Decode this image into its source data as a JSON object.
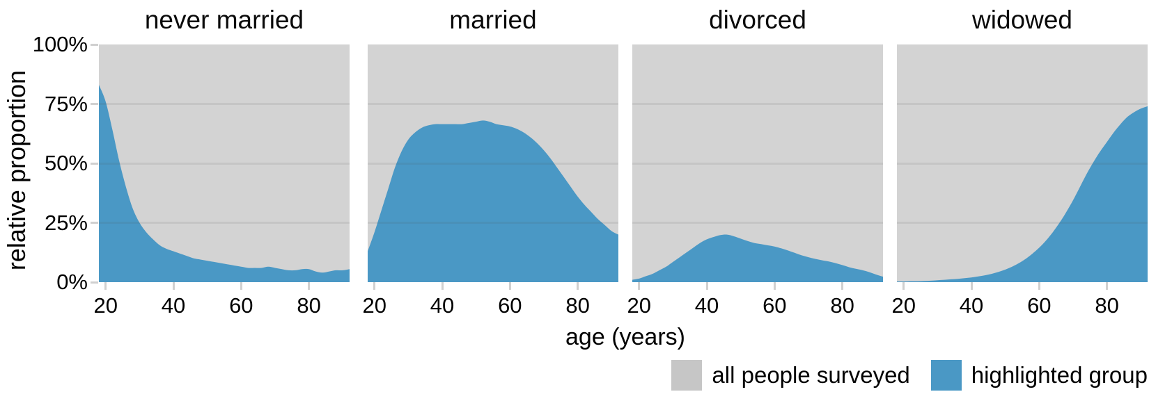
{
  "figure": {
    "y_axis_label": "relative proportion",
    "x_axis_label": "age (years)",
    "y_ticks": [
      {
        "value": 100,
        "label": "100%"
      },
      {
        "value": 75,
        "label": "75%"
      },
      {
        "value": 50,
        "label": "50%"
      },
      {
        "value": 25,
        "label": "25%"
      },
      {
        "value": 0,
        "label": "0%"
      }
    ]
  },
  "legend": {
    "items": [
      {
        "label": "all people surveyed",
        "color": "#c6c6c6"
      },
      {
        "label": "highlighted group",
        "color": "#4a98c5"
      }
    ]
  },
  "colors": {
    "highlight": "#4a98c5",
    "panel_background": "#d3d3d3",
    "gridline": "rgba(80,80,80,0.10)",
    "tick": "#d0d0d0",
    "text": "#000000"
  },
  "chart_data": [
    {
      "type": "area",
      "title": "never married",
      "xlabel": "age (years)",
      "ylabel": "relative proportion",
      "xlim": [
        18,
        92
      ],
      "ylim": [
        0,
        100
      ],
      "x_ticks": [
        20,
        40,
        60,
        80
      ],
      "x_tick_labels": [
        "20",
        "40",
        "60",
        "80"
      ],
      "x": [
        18,
        20,
        22,
        24,
        26,
        28,
        30,
        32,
        34,
        36,
        38,
        40,
        42,
        44,
        46,
        48,
        50,
        52,
        54,
        56,
        58,
        60,
        62,
        64,
        66,
        68,
        70,
        72,
        74,
        76,
        78,
        80,
        82,
        84,
        86,
        88,
        90,
        92
      ],
      "y_percent": [
        83,
        76,
        64,
        51,
        40,
        31,
        25,
        21,
        18,
        15.5,
        14,
        13,
        12,
        11,
        10,
        9.5,
        9,
        8.5,
        8,
        7.5,
        7,
        6.5,
        6,
        6,
        6,
        6.5,
        6,
        5.5,
        5,
        5,
        5.5,
        5.5,
        4.5,
        4,
        4.5,
        5,
        5,
        5.5
      ]
    },
    {
      "type": "area",
      "title": "married",
      "xlabel": "age (years)",
      "ylabel": "relative proportion",
      "xlim": [
        18,
        92
      ],
      "ylim": [
        0,
        100
      ],
      "x_ticks": [
        20,
        40,
        60,
        80
      ],
      "x_tick_labels": [
        "20",
        "40",
        "60",
        "80"
      ],
      "x": [
        18,
        20,
        22,
        24,
        26,
        28,
        30,
        32,
        34,
        36,
        38,
        40,
        42,
        44,
        46,
        48,
        50,
        52,
        54,
        56,
        58,
        60,
        62,
        64,
        66,
        68,
        70,
        72,
        74,
        76,
        78,
        80,
        82,
        84,
        86,
        88,
        90,
        92
      ],
      "y_percent": [
        13,
        21,
        30,
        39,
        48,
        55,
        60,
        63,
        65,
        66,
        66.5,
        66.5,
        66.5,
        66.5,
        66.5,
        67,
        67.5,
        68,
        67.5,
        66.5,
        66,
        65.5,
        64.5,
        63,
        61,
        58.5,
        55.5,
        52,
        48,
        44,
        40,
        36,
        32.5,
        29.5,
        26.5,
        24,
        21.5,
        20
      ]
    },
    {
      "type": "area",
      "title": "divorced",
      "xlabel": "age (years)",
      "ylabel": "relative proportion",
      "xlim": [
        18,
        92
      ],
      "ylim": [
        0,
        100
      ],
      "x_ticks": [
        20,
        40,
        60,
        80
      ],
      "x_tick_labels": [
        "20",
        "40",
        "60",
        "80"
      ],
      "x": [
        18,
        20,
        22,
        24,
        26,
        28,
        30,
        32,
        34,
        36,
        38,
        40,
        42,
        44,
        46,
        48,
        50,
        52,
        54,
        56,
        58,
        60,
        62,
        64,
        66,
        68,
        70,
        72,
        74,
        76,
        78,
        80,
        82,
        84,
        86,
        88,
        90,
        92
      ],
      "y_percent": [
        1,
        1.5,
        2.5,
        3.5,
        5,
        6.5,
        8.5,
        10.5,
        12.5,
        14.5,
        16.5,
        18,
        19,
        19.8,
        20,
        19.3,
        18.3,
        17.3,
        16.5,
        16,
        15.5,
        15,
        14.2,
        13.3,
        12.3,
        11.3,
        10.5,
        9.8,
        9.2,
        8.7,
        8,
        7.2,
        6.3,
        5.6,
        5,
        4.2,
        3.2,
        2.3
      ]
    },
    {
      "type": "area",
      "title": "widowed",
      "xlabel": "age (years)",
      "ylabel": "relative proportion",
      "xlim": [
        18,
        92
      ],
      "ylim": [
        0,
        100
      ],
      "x_ticks": [
        20,
        40,
        60,
        80
      ],
      "x_tick_labels": [
        "20",
        "40",
        "60",
        "80"
      ],
      "x": [
        18,
        20,
        22,
        24,
        26,
        28,
        30,
        32,
        34,
        36,
        38,
        40,
        42,
        44,
        46,
        48,
        50,
        52,
        54,
        56,
        58,
        60,
        62,
        64,
        66,
        68,
        70,
        72,
        74,
        76,
        78,
        80,
        82,
        84,
        86,
        88,
        90,
        92
      ],
      "y_percent": [
        0.3,
        0.3,
        0.4,
        0.4,
        0.5,
        0.6,
        0.8,
        1,
        1.2,
        1.4,
        1.7,
        2,
        2.4,
        2.9,
        3.5,
        4.3,
        5.3,
        6.5,
        8,
        9.8,
        12,
        14.5,
        17.5,
        21,
        25,
        29.5,
        34.5,
        40,
        45.5,
        50.5,
        55,
        59,
        63,
        66.5,
        69.5,
        71.5,
        73,
        74
      ]
    }
  ]
}
